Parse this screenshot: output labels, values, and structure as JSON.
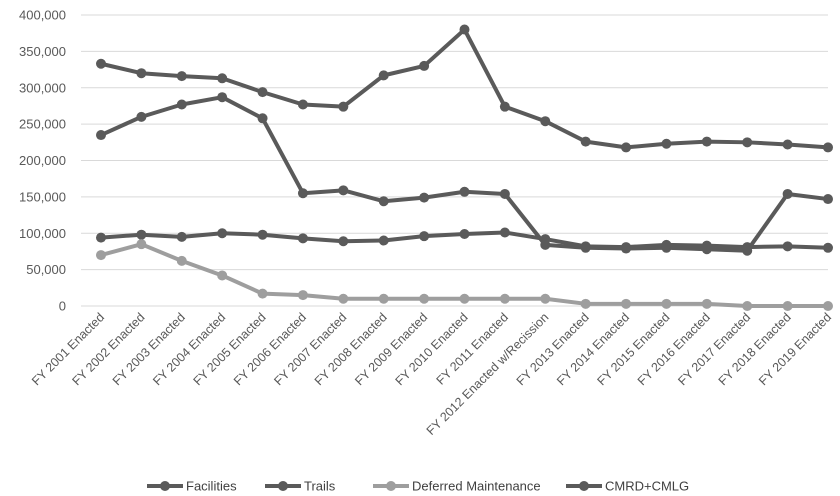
{
  "chart_data": {
    "type": "line",
    "title": "",
    "xlabel": "",
    "ylabel": "",
    "ylim": [
      0,
      400000
    ],
    "yticks": [
      0,
      50000,
      100000,
      150000,
      200000,
      250000,
      300000,
      350000,
      400000
    ],
    "ytick_labels": [
      "0",
      "50,000",
      "100,000",
      "150,000",
      "200,000",
      "250,000",
      "300,000",
      "350,000",
      "400,000"
    ],
    "grid": "horizontal",
    "legend_position": "bottom",
    "categories": [
      "FY 2001 Enacted",
      "FY 2002 Enacted",
      "FY 2003 Enacted",
      "FY 2004 Enacted",
      "FY 2005 Enacted",
      "FY 2006 Enacted",
      "FY 2007 Enacted",
      "FY 2008 Enacted",
      "FY 2009 Enacted",
      "FY 2010 Enacted",
      "FY 2011 Enacted",
      "FY 2012 Enacted w/Recission",
      "FY 2013 Enacted",
      "FY 2014 Enacted",
      "FY 2015 Enacted",
      "FY 2016 Enacted",
      "FY 2017 Enacted",
      "FY 2018 Enacted",
      "FY 2019 Enacted"
    ],
    "series": [
      {
        "name": "Facilities",
        "color": "#5a5a5a",
        "values": [
          235000,
          260000,
          277000,
          287000,
          258000,
          155000,
          159000,
          144000,
          149000,
          157000,
          154000,
          84000,
          80000,
          79000,
          80000,
          78000,
          76000,
          154000,
          147000
        ]
      },
      {
        "name": "Trails",
        "color": "#5a5a5a",
        "values": [
          94000,
          98000,
          95000,
          100000,
          98000,
          93000,
          89000,
          90000,
          96000,
          99000,
          101000,
          92000,
          82000,
          81000,
          84000,
          83000,
          81000,
          82000,
          80000
        ]
      },
      {
        "name": "Deferred Maintenance",
        "color": "#9e9e9e",
        "values": [
          70000,
          85000,
          62000,
          42000,
          17000,
          15000,
          10000,
          10000,
          10000,
          10000,
          10000,
          10000,
          3000,
          3000,
          3000,
          3000,
          0,
          0,
          0
        ]
      },
      {
        "name": "CMRD+CMLG",
        "color": "#5a5a5a",
        "values": [
          333000,
          320000,
          316000,
          313000,
          294000,
          277000,
          274000,
          317000,
          330000,
          380000,
          274000,
          254000,
          226000,
          218000,
          223000,
          226000,
          225000,
          222000,
          218000
        ]
      }
    ]
  }
}
